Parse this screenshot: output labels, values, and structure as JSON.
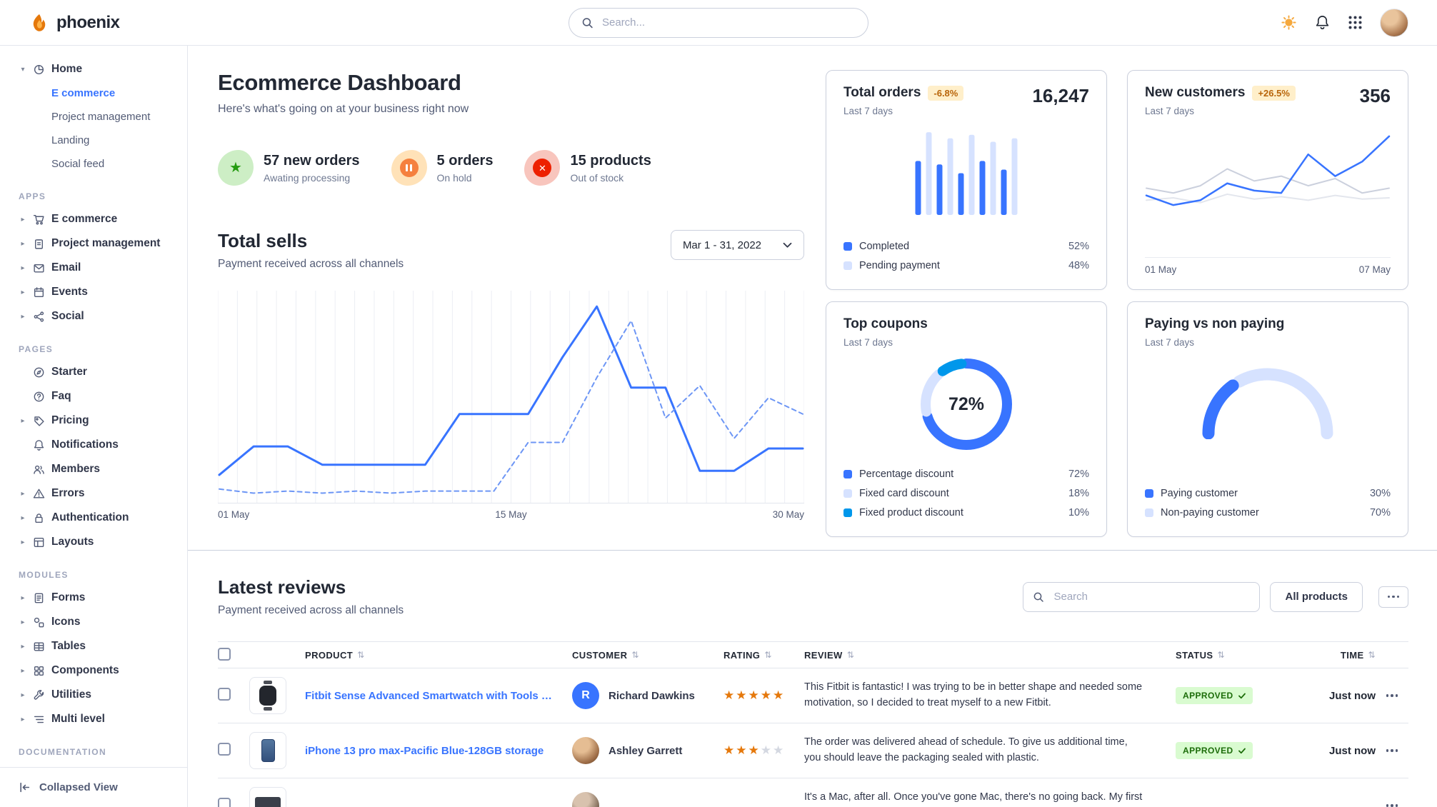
{
  "theme": {
    "primary": "#3874ff",
    "primary_light": "#d6e2ff",
    "info": "#0097eb",
    "warning_text": "#b86409",
    "warning_bg": "#ffefca",
    "success_bg": "#d9fbd0",
    "success_text": "#1c6c09",
    "star": "#e5780b"
  },
  "navbar": {
    "brand": "phoenix",
    "search_placeholder": "Search..."
  },
  "sidebar": {
    "home": {
      "label": "Home",
      "icon": "pie-chart",
      "active_child": 0,
      "children": [
        "E commerce",
        "Project management",
        "Landing",
        "Social feed"
      ]
    },
    "sections": [
      {
        "label": "APPS",
        "items": [
          {
            "label": "E commerce",
            "icon": "cart",
            "caret": true
          },
          {
            "label": "Project management",
            "icon": "clipboard",
            "caret": true
          },
          {
            "label": "Email",
            "icon": "envelope",
            "caret": true
          },
          {
            "label": "Events",
            "icon": "calendar",
            "caret": true
          },
          {
            "label": "Social",
            "icon": "share",
            "caret": true
          }
        ]
      },
      {
        "label": "PAGES",
        "items": [
          {
            "label": "Starter",
            "icon": "compass"
          },
          {
            "label": "Faq",
            "icon": "question"
          },
          {
            "label": "Pricing",
            "icon": "tag",
            "caret": true
          },
          {
            "label": "Notifications",
            "icon": "bell"
          },
          {
            "label": "Members",
            "icon": "users"
          },
          {
            "label": "Errors",
            "icon": "warning",
            "caret": true
          },
          {
            "label": "Authentication",
            "icon": "lock",
            "caret": true
          },
          {
            "label": "Layouts",
            "icon": "layout",
            "caret": true
          }
        ]
      },
      {
        "label": "MODULES",
        "items": [
          {
            "label": "Forms",
            "icon": "file",
            "caret": true
          },
          {
            "label": "Icons",
            "icon": "shapes",
            "caret": true
          },
          {
            "label": "Tables",
            "icon": "table",
            "caret": true
          },
          {
            "label": "Components",
            "icon": "puzzle",
            "caret": true
          },
          {
            "label": "Utilities",
            "icon": "wrench",
            "caret": true
          },
          {
            "label": "Multi level",
            "icon": "list",
            "caret": true
          }
        ]
      },
      {
        "label": "DOCUMENTATION",
        "items": []
      }
    ],
    "collapsed_view": "Collapsed View"
  },
  "header": {
    "title": "Ecommerce Dashboard",
    "subtitle": "Here's what's going on at your business right now"
  },
  "stats": [
    {
      "value": "57 new orders",
      "caption": "Awating processing",
      "icon": "star",
      "color": "green"
    },
    {
      "value": "5 orders",
      "caption": "On hold",
      "icon": "pause",
      "color": "orange"
    },
    {
      "value": "15 products",
      "caption": "Out of stock",
      "icon": "x",
      "color": "red"
    }
  ],
  "total_sells": {
    "title": "Total sells",
    "subtitle": "Payment received across all channels",
    "date_range": "Mar 1 - 31, 2022",
    "x_labels": [
      "01 May",
      "15 May",
      "30 May"
    ]
  },
  "cards": {
    "total_orders": {
      "title": "Total orders",
      "badge": "-6.8%",
      "period": "Last 7 days",
      "value": "16,247",
      "legend": [
        {
          "label": "Completed",
          "value": "52%",
          "color": "#3874ff"
        },
        {
          "label": "Pending payment",
          "value": "48%",
          "color": "#d6e2ff"
        }
      ]
    },
    "new_customers": {
      "title": "New customers",
      "badge": "+26.5%",
      "period": "Last 7 days",
      "value": "356",
      "x_labels": [
        "01 May",
        "07 May"
      ]
    },
    "top_coupons": {
      "title": "Top coupons",
      "period": "Last 7 days",
      "center_value": "72%",
      "legend": [
        {
          "label": "Percentage discount",
          "value": "72%",
          "color": "#3874ff"
        },
        {
          "label": "Fixed card discount",
          "value": "18%",
          "color": "#d6e2ff"
        },
        {
          "label": "Fixed product discount",
          "value": "10%",
          "color": "#0097eb"
        }
      ]
    },
    "paying": {
      "title": "Paying vs non paying",
      "period": "Last 7 days",
      "legend": [
        {
          "label": "Paying customer",
          "value": "30%",
          "color": "#3874ff"
        },
        {
          "label": "Non-paying customer",
          "value": "70%",
          "color": "#d6e2ff"
        }
      ]
    }
  },
  "reviews": {
    "title": "Latest reviews",
    "subtitle": "Payment received across all channels",
    "search_placeholder": "Search",
    "filter_label": "All products",
    "columns": [
      "PRODUCT",
      "CUSTOMER",
      "RATING",
      "REVIEW",
      "STATUS",
      "TIME"
    ],
    "rows": [
      {
        "product": "Fitbit Sense Advanced Smartwatch with Tools fo...",
        "customer": "Richard Dawkins",
        "initial": "R",
        "rating": 5,
        "review": "This Fitbit is fantastic! I was trying to be in better shape and needed some motivation, so I decided to treat myself to a new Fitbit.",
        "status": "APPROVED",
        "time": "Just now"
      },
      {
        "product": "iPhone 13 pro max-Pacific Blue-128GB storage",
        "customer": "Ashley Garrett",
        "initial": "",
        "rating": 3,
        "review": "The order was delivered ahead of schedule. To give us additional time, you should leave the packaging sealed with plastic.",
        "status": "APPROVED",
        "time": "Just now"
      },
      {
        "product": "",
        "customer": "",
        "initial": "",
        "rating": 0,
        "review": "It's a Mac, after all. Once you've gone Mac, there's no going back. My first Mac lasted...",
        "status": "",
        "time": ""
      }
    ]
  },
  "chart_data": [
    {
      "id": "total-sells",
      "type": "line",
      "title": "Total sells",
      "grid": true,
      "ylim": [
        0,
        100
      ],
      "x_labels": [
        "01 May",
        "15 May",
        "30 May"
      ],
      "series": [
        {
          "name": "Current period",
          "style": "solid",
          "color": "#3874ff",
          "width": 3,
          "values": [
            12,
            26,
            26,
            17,
            17,
            17,
            17,
            42,
            42,
            42,
            70,
            95,
            55,
            55,
            14,
            14,
            25,
            25
          ]
        },
        {
          "name": "Previous period",
          "style": "dashed",
          "color": "#6d96f5",
          "width": 2,
          "values": [
            5,
            3,
            4,
            3,
            4,
            3,
            4,
            4,
            4,
            28,
            28,
            60,
            88,
            40,
            56,
            30,
            50,
            42
          ]
        }
      ]
    },
    {
      "id": "total-orders",
      "type": "bar",
      "ylim": [
        0,
        100
      ],
      "colors": {
        "completed": "#3874ff",
        "pending": "#d6e2ff"
      },
      "bars": [
        {
          "value": 62,
          "kind": "completed"
        },
        {
          "value": 95,
          "kind": "pending"
        },
        {
          "value": 58,
          "kind": "completed"
        },
        {
          "value": 88,
          "kind": "pending"
        },
        {
          "value": 48,
          "kind": "completed"
        },
        {
          "value": 92,
          "kind": "pending"
        },
        {
          "value": 62,
          "kind": "completed"
        },
        {
          "value": 84,
          "kind": "pending"
        },
        {
          "value": 52,
          "kind": "completed"
        },
        {
          "value": 88,
          "kind": "pending"
        }
      ]
    },
    {
      "id": "new-customers",
      "type": "line",
      "ylim": [
        0,
        100
      ],
      "x_labels": [
        "01 May",
        "07 May"
      ],
      "series": [
        {
          "name": "Baseline",
          "style": "solid",
          "color": "#e3e6ed",
          "width": 2,
          "values": [
            40,
            42,
            38,
            45,
            41,
            43,
            40,
            44,
            41,
            42
          ]
        },
        {
          "name": "Previous period",
          "style": "solid",
          "color": "#cbd0dd",
          "width": 2,
          "values": [
            50,
            46,
            52,
            66,
            56,
            60,
            52,
            58,
            46,
            50
          ]
        },
        {
          "name": "Current period",
          "style": "solid",
          "color": "#3874ff",
          "width": 2.5,
          "values": [
            44,
            36,
            40,
            54,
            48,
            46,
            78,
            60,
            72,
            93
          ]
        }
      ]
    },
    {
      "id": "top-coupons",
      "type": "pie",
      "center_label": "72%",
      "slices": [
        {
          "label": "Percentage discount",
          "value": 72,
          "color": "#3874ff"
        },
        {
          "label": "Fixed card discount",
          "value": 18,
          "color": "#d6e2ff"
        },
        {
          "label": "Fixed product discount",
          "value": 10,
          "color": "#0097eb"
        }
      ]
    },
    {
      "id": "paying-gauge",
      "type": "gauge",
      "slices": [
        {
          "label": "Paying customer",
          "value": 30,
          "color": "#3874ff"
        },
        {
          "label": "Non-paying customer",
          "value": 70,
          "color": "#d6e2ff"
        }
      ]
    }
  ]
}
